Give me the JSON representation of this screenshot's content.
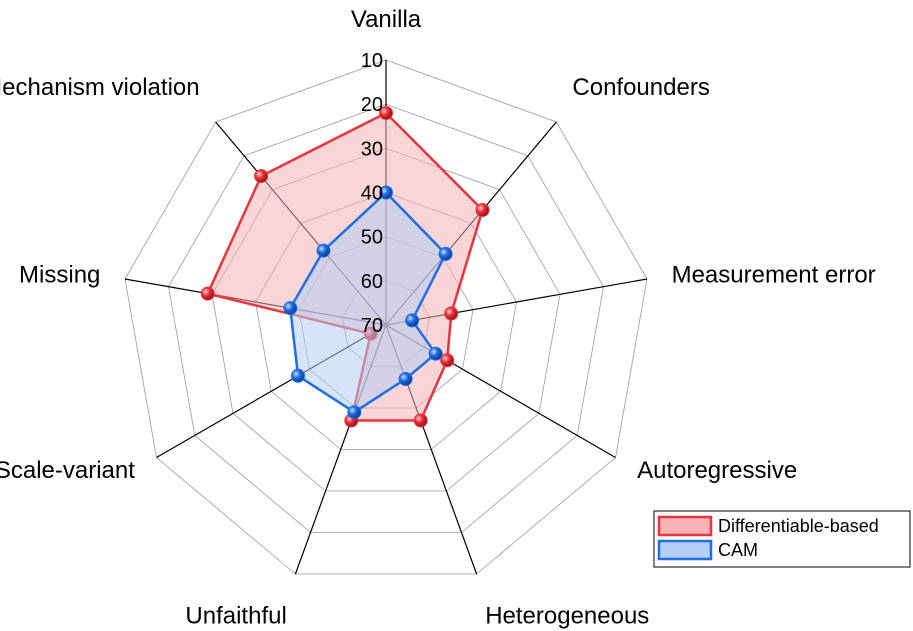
{
  "chart_data": {
    "type": "radar",
    "axes": [
      "Vanilla",
      "Confounders",
      "Measurement error",
      "Autoregressive",
      "Heterogeneous",
      "Unfaithful",
      "Scale-variant",
      "Missing",
      "Mechanism violation"
    ],
    "radial_ticks": [
      "10",
      "20",
      "30",
      "40",
      "50",
      "60",
      "70"
    ],
    "radial_range": [
      10,
      70
    ],
    "radial_reversed": true,
    "grid": true,
    "legend_position": "bottom-right",
    "series": [
      {
        "name": "Differentiable-based",
        "values": [
          22,
          36,
          55,
          54,
          47,
          47,
          66,
          29,
          26
        ],
        "color": "#e8343d",
        "fill": "#f6b3b6"
      },
      {
        "name": "CAM",
        "values": [
          40,
          49,
          64,
          57,
          57,
          49,
          47,
          48,
          48
        ],
        "color": "#1f6ee6",
        "fill": "#b3cdf4"
      }
    ]
  }
}
